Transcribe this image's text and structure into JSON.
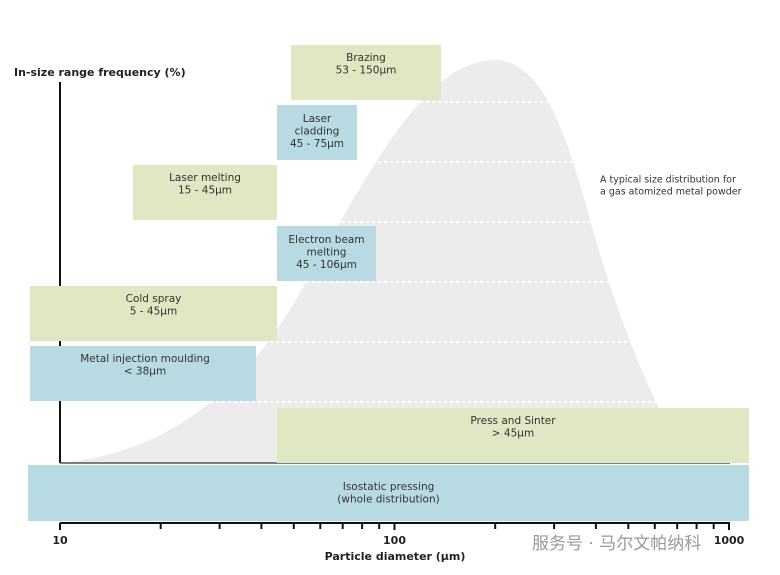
{
  "axes": {
    "y_label": "In-size range frequency (%)",
    "x_label": "Particle diameter (µm)",
    "x_tick_labels": [
      "10",
      "100",
      "1000"
    ]
  },
  "annotation": [
    "A typical size distribution for",
    "a gas atomized metal powder"
  ],
  "boxes": [
    {
      "lines": [
        "Brazing",
        "53 - 150µm"
      ]
    },
    {
      "lines": [
        "Laser",
        "cladding",
        "45 - 75µm"
      ]
    },
    {
      "lines": [
        "Laser melting",
        "15 - 45µm"
      ]
    },
    {
      "lines": [
        "Electron beam",
        "melting",
        "45 - 106µm"
      ]
    },
    {
      "lines": [
        "Cold spray",
        "5 - 45µm"
      ]
    },
    {
      "lines": [
        "Metal injection moulding",
        "< 38µm"
      ]
    },
    {
      "lines": [
        "Press and Sinter",
        "> 45µm"
      ]
    },
    {
      "lines": [
        "Isostatic pressing",
        "(whole distribution)"
      ]
    }
  ],
  "watermark": "服务号 · 马尔文帕纳科"
}
